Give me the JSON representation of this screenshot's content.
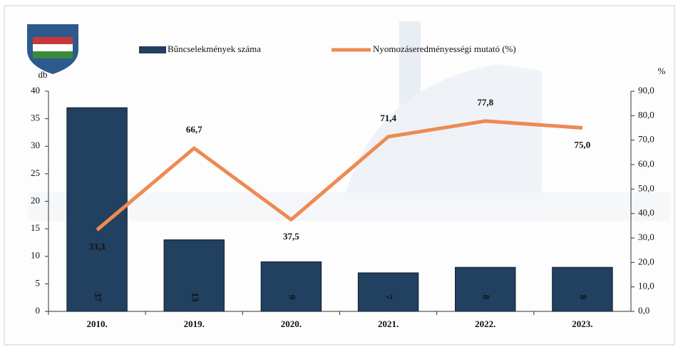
{
  "chart_data": {
    "type": "bar-line",
    "categories": [
      "2010.",
      "2019.",
      "2020.",
      "2021.",
      "2022.",
      "2023."
    ],
    "series": [
      {
        "name": "Bűncselekmények száma",
        "type": "bar",
        "color": "#22405f",
        "values": [
          37,
          13,
          9,
          7,
          8,
          8
        ]
      },
      {
        "name": "Nyomozáseredményességi mutató (%)",
        "type": "line",
        "axis": "y2",
        "color": "#ee8a52",
        "values": [
          33.3,
          66.7,
          37.5,
          71.4,
          77.8,
          75.0
        ],
        "value_labels": [
          "33,3",
          "66,7",
          "37,5",
          "71,4",
          "77,8",
          "75,0"
        ]
      }
    ],
    "y_label": "db",
    "y2_label": "%",
    "ylim": [
      0,
      40
    ],
    "yticks": [
      0,
      5,
      10,
      15,
      20,
      25,
      30,
      35,
      40
    ],
    "y2lim": [
      0,
      90
    ],
    "y2ticks": [
      {
        "value": 0,
        "label": "0,0"
      },
      {
        "value": 10,
        "label": "10,0"
      },
      {
        "value": 20,
        "label": "20,0"
      },
      {
        "value": 30,
        "label": "30,0"
      },
      {
        "value": 40,
        "label": "40,0"
      },
      {
        "value": 50,
        "label": "50,0"
      },
      {
        "value": 60,
        "label": "60,0"
      },
      {
        "value": 70,
        "label": "70,0"
      },
      {
        "value": 80,
        "label": "80,0"
      },
      {
        "value": 90,
        "label": "90,0"
      }
    ],
    "legend": "top"
  }
}
